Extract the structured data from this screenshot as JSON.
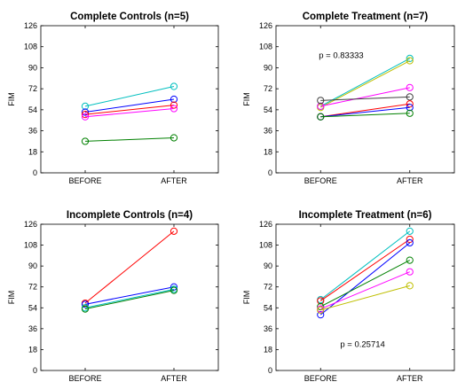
{
  "chart_data": [
    {
      "type": "line",
      "title": "Complete Controls (n=5)",
      "ylabel": "FIM",
      "categories": [
        "BEFORE",
        "AFTER"
      ],
      "yticks": [
        0,
        18,
        36,
        54,
        72,
        90,
        108,
        126
      ],
      "ylim": [
        0,
        126
      ],
      "grid": false,
      "annotation": "",
      "series": [
        {
          "color": "#00bfbf",
          "values": [
            57,
            74
          ]
        },
        {
          "color": "#0000ff",
          "values": [
            52,
            63
          ]
        },
        {
          "color": "#ff0000",
          "values": [
            50,
            58
          ]
        },
        {
          "color": "#ff00ff",
          "values": [
            48,
            55
          ]
        },
        {
          "color": "#008000",
          "values": [
            27,
            30
          ]
        }
      ]
    },
    {
      "type": "line",
      "title": "Complete Treatment (n=7)",
      "ylabel": "FIM",
      "categories": [
        "BEFORE",
        "AFTER"
      ],
      "yticks": [
        0,
        18,
        36,
        54,
        72,
        90,
        108,
        126
      ],
      "ylim": [
        0,
        126
      ],
      "grid": false,
      "annotation": "p = 0.83333",
      "series": [
        {
          "color": "#00bfbf",
          "values": [
            57,
            98
          ]
        },
        {
          "color": "#bfbf00",
          "values": [
            56,
            96
          ]
        },
        {
          "color": "#ff00ff",
          "values": [
            57,
            73
          ]
        },
        {
          "color": "#404040",
          "values": [
            62,
            65
          ]
        },
        {
          "color": "#ff0000",
          "values": [
            48,
            59
          ]
        },
        {
          "color": "#0000ff",
          "values": [
            48,
            56
          ]
        },
        {
          "color": "#008000",
          "values": [
            48,
            51
          ]
        }
      ]
    },
    {
      "type": "line",
      "title": "Incomplete Controls (n=4)",
      "ylabel": "FIM",
      "categories": [
        "BEFORE",
        "AFTER"
      ],
      "yticks": [
        0,
        18,
        36,
        54,
        72,
        90,
        108,
        126
      ],
      "ylim": [
        0,
        126
      ],
      "grid": false,
      "annotation": "",
      "series": [
        {
          "color": "#ff0000",
          "values": [
            58,
            120
          ]
        },
        {
          "color": "#0000ff",
          "values": [
            57,
            72
          ]
        },
        {
          "color": "#00bfbf",
          "values": [
            54,
            70
          ]
        },
        {
          "color": "#008000",
          "values": [
            53,
            69
          ]
        }
      ]
    },
    {
      "type": "line",
      "title": "Incomplete Treatment (n=6)",
      "ylabel": "FIM",
      "categories": [
        "BEFORE",
        "AFTER"
      ],
      "yticks": [
        0,
        18,
        36,
        54,
        72,
        90,
        108,
        126
      ],
      "ylim": [
        0,
        126
      ],
      "grid": false,
      "annotation": "p = 0.25714",
      "series": [
        {
          "color": "#00bfbf",
          "values": [
            61,
            120
          ]
        },
        {
          "color": "#ff0000",
          "values": [
            60,
            113
          ]
        },
        {
          "color": "#0000ff",
          "values": [
            48,
            110
          ]
        },
        {
          "color": "#008000",
          "values": [
            55,
            95
          ]
        },
        {
          "color": "#ff00ff",
          "values": [
            53,
            85
          ]
        },
        {
          "color": "#bfbf00",
          "values": [
            52,
            73
          ]
        }
      ]
    }
  ]
}
